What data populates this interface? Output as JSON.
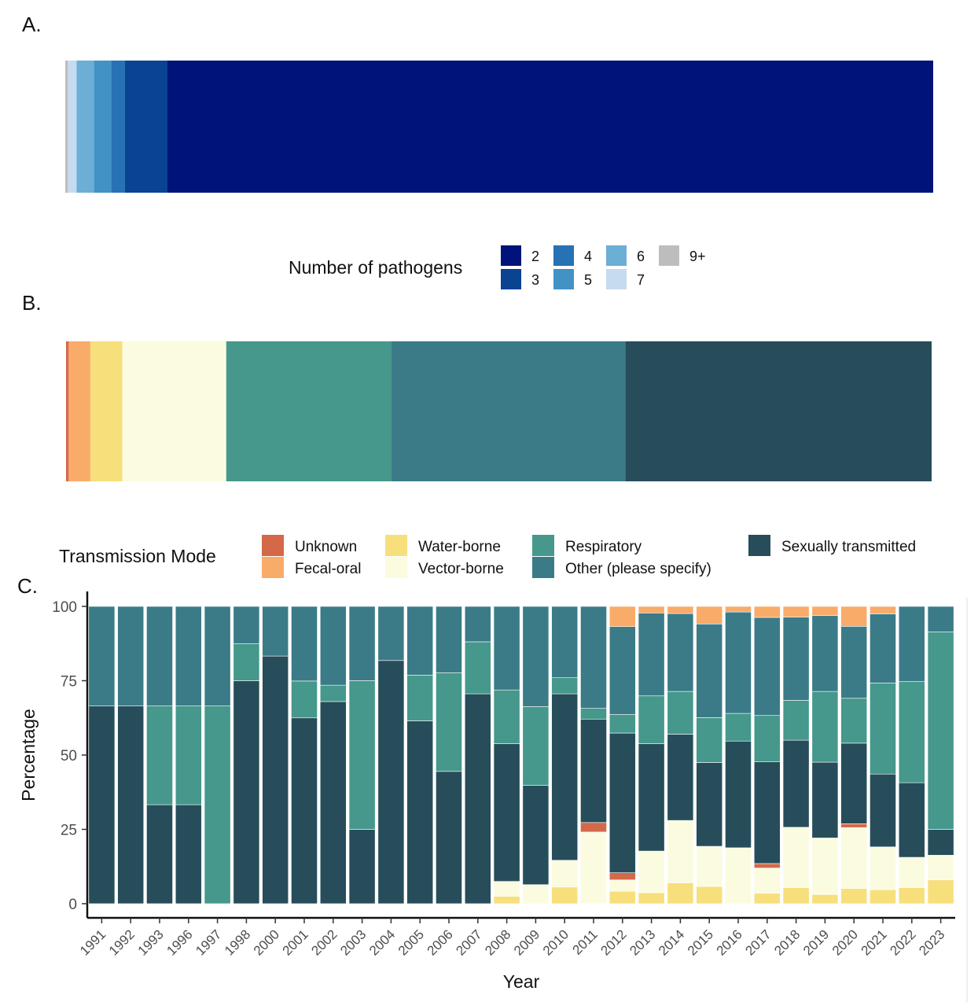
{
  "chart_data": [
    {
      "panel": "A.",
      "type": "bar",
      "orientation": "horizontal-stacked-100",
      "legend_title": "Number of pathogens",
      "legend_position": "bottom",
      "categories": [
        "2",
        "3",
        "4",
        "5",
        "6",
        "7",
        "9+"
      ],
      "colors": [
        "#00137a",
        "#0a4392",
        "#2771b5",
        "#4292c6",
        "#6baed6",
        "#c6dbef",
        "#bdbdbd"
      ],
      "values": [
        88.4,
        4.9,
        1.6,
        2.0,
        2.0,
        1.0,
        0.3
      ]
    },
    {
      "panel": "B.",
      "type": "bar",
      "orientation": "horizontal-stacked-100",
      "legend_title": "Transmission Mode",
      "legend_position": "bottom",
      "categories": [
        "Sexually transmitted",
        "Other (please specify)",
        "Respiratory",
        "Vector-borne",
        "Water-borne",
        "Fecal-oral",
        "Unknown"
      ],
      "colors": [
        "#274d5b",
        "#3b7b88",
        "#45988b",
        "#fbfbe0",
        "#f7df7c",
        "#f9ab6a",
        "#d4694a"
      ],
      "values": [
        35.4,
        27.0,
        19.1,
        12.0,
        3.7,
        2.5,
        0.3
      ]
    },
    {
      "panel": "C.",
      "type": "bar",
      "stacked": true,
      "xlabel": "Year",
      "ylabel": "Percentage",
      "ylim": [
        0,
        100
      ],
      "yticks": [
        "0",
        "25",
        "50",
        "75",
        "100"
      ],
      "legend": "shared with panel B",
      "categories": [
        "1991",
        "1992",
        "1993",
        "1996",
        "1997",
        "1998",
        "2000",
        "2001",
        "2002",
        "2003",
        "2004",
        "2005",
        "2006",
        "2007",
        "2008",
        "2009",
        "2010",
        "2011",
        "2012",
        "2013",
        "2014",
        "2015",
        "2016",
        "2017",
        "2018",
        "2019",
        "2020",
        "2021",
        "2022",
        "2023"
      ],
      "series": [
        {
          "name": "Water-borne",
          "color": "#f7df7c",
          "values": [
            0,
            0,
            0,
            0,
            0,
            0,
            0,
            0,
            0,
            0,
            0,
            0,
            0,
            0,
            2.5,
            0,
            5.6,
            0,
            4.2,
            3.7,
            7,
            5.8,
            0,
            3.5,
            5.4,
            3.1,
            5.1,
            4.7,
            5.4,
            8
          ]
        },
        {
          "name": "Vector-borne",
          "color": "#fbfbe0",
          "values": [
            0,
            0,
            0,
            0,
            0,
            0,
            0,
            0,
            0,
            0,
            0,
            0,
            0,
            0,
            5,
            6.4,
            9,
            24.1,
            3.8,
            14,
            21,
            13.5,
            18.8,
            8.5,
            20.3,
            19,
            20.5,
            14.4,
            10.2,
            8.3
          ]
        },
        {
          "name": "Unknown",
          "color": "#d4694a",
          "values": [
            0,
            0,
            0,
            0,
            0,
            0,
            0,
            0,
            0,
            0,
            0,
            0,
            0,
            0,
            0,
            0,
            0,
            3.2,
            2.4,
            0,
            0,
            0,
            0,
            1.5,
            0,
            0,
            1.3,
            0,
            0,
            0
          ]
        },
        {
          "name": "Sexually transmitted",
          "color": "#274d5b",
          "values": [
            66.5,
            66.5,
            33.3,
            33.3,
            0,
            75,
            83.3,
            62.5,
            68,
            25,
            81.8,
            61.5,
            44.5,
            70.6,
            46.3,
            33.4,
            56,
            34.8,
            47,
            36.1,
            29,
            28.2,
            35.9,
            34.2,
            29.3,
            25.5,
            27.1,
            24.5,
            25.1,
            8.7
          ]
        },
        {
          "name": "Respiratory",
          "color": "#45988b",
          "values": [
            0,
            0,
            33.2,
            33.2,
            66.5,
            12.5,
            0,
            12.4,
            5.5,
            50,
            0,
            15.4,
            33.2,
            17.5,
            18.1,
            26.5,
            5.4,
            3.6,
            6.2,
            16.1,
            14.4,
            15.1,
            9.3,
            15.6,
            13.4,
            23.8,
            15.1,
            30.6,
            34,
            66.4
          ]
        },
        {
          "name": "Other (please specify)",
          "color": "#3b7b88",
          "values": [
            33.5,
            33.5,
            33.5,
            33.5,
            33.5,
            12.5,
            16.7,
            25.1,
            26.5,
            25,
            18.2,
            23.1,
            22.3,
            11.9,
            28.1,
            33.7,
            24,
            34.3,
            29.6,
            27.9,
            26.2,
            31.5,
            34.1,
            33,
            28,
            25.5,
            24.2,
            23.3,
            25.3,
            8.6
          ]
        },
        {
          "name": "Fecal-oral",
          "color": "#f9ab6a",
          "values": [
            0,
            0,
            0,
            0,
            0,
            0,
            0,
            0,
            0,
            0,
            0,
            0,
            0,
            0,
            0,
            0,
            0,
            0,
            6.8,
            2.2,
            2.4,
            5.9,
            1.9,
            3.7,
            3.6,
            3.1,
            6.7,
            2.5,
            0,
            0
          ]
        }
      ]
    }
  ],
  "legend_a": {
    "title": "Number of pathogens",
    "items": [
      {
        "label": "2",
        "color": "#00137a"
      },
      {
        "label": "3",
        "color": "#0a4392"
      },
      {
        "label": "4",
        "color": "#2771b5"
      },
      {
        "label": "5",
        "color": "#4292c6"
      },
      {
        "label": "6",
        "color": "#6baed6"
      },
      {
        "label": "7",
        "color": "#c6dbef"
      },
      {
        "label": "9+",
        "color": "#bdbdbd"
      }
    ]
  },
  "legend_b": {
    "title": "Transmission Mode",
    "items": [
      {
        "label": "Unknown",
        "color": "#d4694a"
      },
      {
        "label": "Fecal-oral",
        "color": "#f9ab6a"
      },
      {
        "label": "Water-borne",
        "color": "#f7df7c"
      },
      {
        "label": "Vector-borne",
        "color": "#fbfbe0"
      },
      {
        "label": "Respiratory",
        "color": "#45988b"
      },
      {
        "label": "Other (please specify)",
        "color": "#3b7b88"
      },
      {
        "label": "Sexually transmitted",
        "color": "#274d5b"
      }
    ]
  }
}
